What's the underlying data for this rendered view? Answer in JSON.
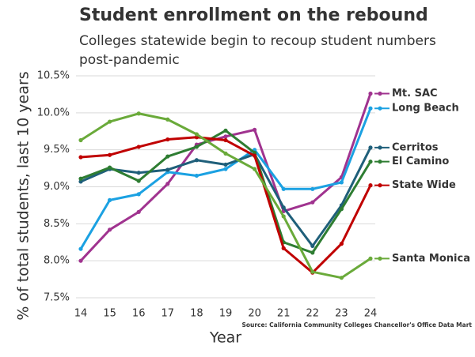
{
  "chart_data": {
    "type": "line",
    "title": "Student enrollment on the rebound",
    "subtitle": "Colleges statewide begin to recoup student numbers post-pandemic",
    "x_label": "Year",
    "y_label": "% of total students, last 10 years",
    "source": "Source: California Community Colleges Chancellor's Office Data Mart",
    "categories": [
      "14",
      "15",
      "16",
      "17",
      "18",
      "19",
      "20",
      "21",
      "22",
      "23",
      "24"
    ],
    "ylim": [
      7.5,
      10.5
    ],
    "yticks": [
      {
        "value": 7.5,
        "label": "7.5%"
      },
      {
        "value": 8.0,
        "label": "8.0%"
      },
      {
        "value": 8.5,
        "label": "8.5%"
      },
      {
        "value": 9.0,
        "label": "9.0%"
      },
      {
        "value": 9.5,
        "label": "9.5%"
      },
      {
        "value": 10.0,
        "label": "10.0%"
      },
      {
        "value": 10.5,
        "label": "10.5%"
      }
    ],
    "grid": true,
    "series": [
      {
        "name": "Mt. SAC",
        "color": "#a0338f",
        "values": [
          8.0,
          8.42,
          8.66,
          9.04,
          9.57,
          9.68,
          9.77,
          8.67,
          8.79,
          9.13,
          10.26
        ]
      },
      {
        "name": "Long Beach",
        "color": "#1ba1e2",
        "values": [
          8.16,
          8.82,
          8.9,
          9.2,
          9.15,
          9.24,
          9.5,
          8.97,
          8.97,
          9.06,
          10.06
        ]
      },
      {
        "name": "Cerritos",
        "color": "#1f5f7a",
        "values": [
          9.07,
          9.24,
          9.19,
          9.23,
          9.36,
          9.3,
          9.44,
          8.72,
          8.2,
          8.75,
          9.53
        ]
      },
      {
        "name": "El Camino",
        "color": "#2e7d32",
        "values": [
          9.11,
          9.26,
          9.08,
          9.41,
          9.54,
          9.76,
          9.46,
          8.25,
          8.11,
          8.7,
          9.34
        ]
      },
      {
        "name": "State Wide",
        "color": "#c00000",
        "values": [
          9.4,
          9.43,
          9.54,
          9.64,
          9.67,
          9.63,
          9.42,
          8.17,
          7.84,
          8.23,
          9.02
        ]
      },
      {
        "name": "Santa Monica",
        "color": "#6aaa3a",
        "values": [
          9.63,
          9.88,
          9.99,
          9.91,
          9.71,
          9.45,
          9.24,
          8.6,
          7.85,
          7.77,
          8.03
        ]
      }
    ]
  }
}
